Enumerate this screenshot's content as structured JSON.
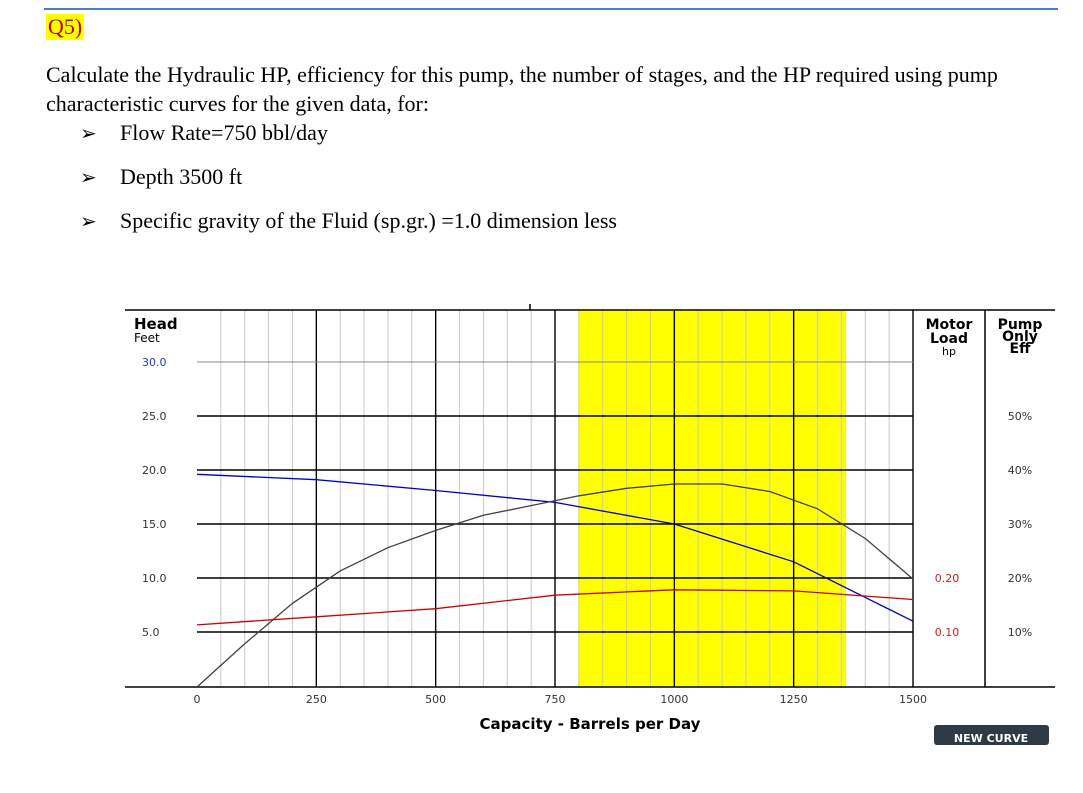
{
  "question": {
    "label": "Q5)",
    "text": "Calculate the Hydraulic HP, efficiency for this pump, the number of stages, and the HP required using pump characteristic curves for the given data, for:",
    "bullets": [
      "Flow Rate=750 bbl/day",
      "Depth 3500 ft",
      "Specific gravity of the Fluid (sp.gr.) =1.0 dimension less"
    ]
  },
  "chart_data": {
    "type": "line",
    "xlabel": "Capacity - Barrels per Day",
    "x_ticks": [
      0,
      250,
      500,
      750,
      1000,
      1250,
      1500
    ],
    "xlim": [
      0,
      1500
    ],
    "left_axis": {
      "title": "Head",
      "subtitle": "Feet",
      "ticks": [
        "30.0",
        "25.0",
        "20.0",
        "15.0",
        "10.0",
        "5.0"
      ],
      "ylim": [
        0,
        30
      ]
    },
    "motor_axis": {
      "title": "Motor Load",
      "unit": "hp",
      "ticks": [
        "0.20",
        "0.10"
      ]
    },
    "eff_axis": {
      "title": "Pump Only Eff",
      "ticks": [
        "50%",
        "40%",
        "30%",
        "20%",
        "10%"
      ]
    },
    "recommended_range": [
      800,
      1360
    ],
    "series": [
      {
        "color": "#0000cc",
        "axis": "head",
        "x": [
          0,
          250,
          500,
          750,
          1000,
          1250,
          1500
        ],
        "y": [
          19.6,
          19.1,
          18.1,
          17.0,
          15.0,
          11.5,
          6.0
        ]
      },
      {
        "color": "#404040",
        "axis": "eff",
        "x": [
          0,
          100,
          200,
          300,
          400,
          500,
          600,
          700,
          800,
          900,
          1000,
          1100,
          1200,
          1300,
          1400,
          1500
        ],
        "y": [
          0,
          8,
          15.5,
          21.5,
          25.8,
          29.0,
          31.8,
          33.6,
          35.4,
          36.8,
          37.6,
          37.6,
          36.2,
          33.0,
          27.5,
          20.0
        ]
      },
      {
        "color": "#cc0000",
        "axis": "motor",
        "x": [
          0,
          250,
          500,
          750,
          1000,
          1250,
          1500
        ],
        "y": [
          0.115,
          0.13,
          0.145,
          0.17,
          0.18,
          0.178,
          0.162
        ]
      }
    ],
    "button_label": "NEW CURVE"
  }
}
